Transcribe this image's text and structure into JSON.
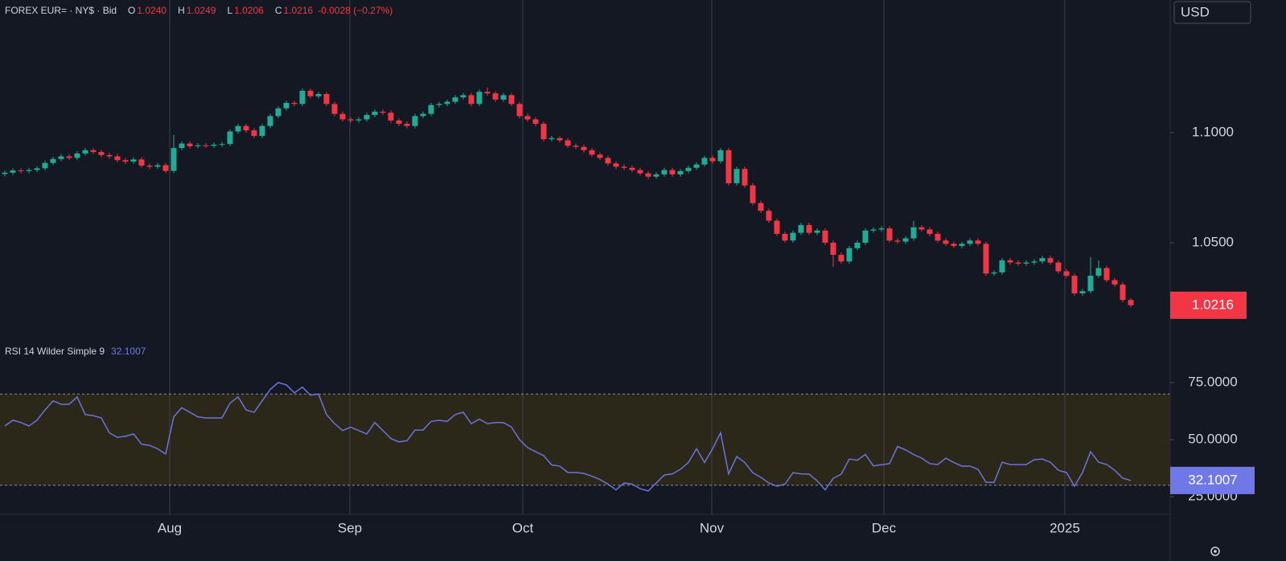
{
  "header": {
    "title": "FOREX EUR= · NY$ · Bid",
    "items": [
      {
        "key": "O",
        "value": "1.0240"
      },
      {
        "key": "H",
        "value": "1.0249"
      },
      {
        "key": "L",
        "value": "1.0206"
      },
      {
        "key": "C",
        "value": "1.0216"
      }
    ],
    "change": "-0.0028 (−0.27%)",
    "currency": "USD"
  },
  "chart_data": [
    {
      "type": "candlestick",
      "up_color": "#22ab94",
      "down_color": "#f23645",
      "ylim": [
        1.0051,
        1.1602
      ],
      "yticks": [
        {
          "value": 1.1,
          "label": "1.1000"
        },
        {
          "value": 1.05,
          "label": "1.0500"
        }
      ],
      "xticks": [
        {
          "value": 20.5,
          "label": "Aug"
        },
        {
          "value": 42.9,
          "label": "Sep"
        },
        {
          "value": 64.4,
          "label": "Oct"
        },
        {
          "value": 87.9,
          "label": "Nov"
        },
        {
          "value": 109.3,
          "label": "Dec"
        },
        {
          "value": 131.8,
          "label": "2025"
        }
      ],
      "last_label": "1.0216",
      "open": [
        1.0812,
        1.0818,
        1.0828,
        1.0825,
        1.083,
        1.0838,
        1.0862,
        1.088,
        1.0892,
        1.0885,
        1.0905,
        1.092,
        1.0912,
        1.0898,
        1.0892,
        1.0875,
        1.0868,
        1.0878,
        1.085,
        1.0845,
        1.0852,
        1.0826,
        1.093,
        1.095,
        1.0938,
        1.0942,
        1.094,
        1.0945,
        1.0948,
        1.1005,
        1.103,
        1.101,
        1.0985,
        1.103,
        1.1075,
        1.111,
        1.1135,
        1.113,
        1.119,
        1.1165,
        1.1175,
        1.113,
        1.1085,
        1.106,
        1.1055,
        1.106,
        1.108,
        1.1095,
        1.109,
        1.1055,
        1.104,
        1.103,
        1.1075,
        1.1085,
        1.1125,
        1.113,
        1.114,
        1.116,
        1.117,
        1.113,
        1.1185,
        1.1178,
        1.115,
        1.117,
        1.113,
        1.1075,
        1.106,
        1.104,
        1.097,
        1.0975,
        1.0965,
        1.094,
        1.0935,
        1.092,
        1.09,
        1.0885,
        1.086,
        1.0845,
        1.084,
        1.083,
        1.0815,
        1.08,
        1.081,
        1.083,
        1.081,
        1.0825,
        1.084,
        1.0855,
        1.0885,
        1.087,
        1.092,
        1.077,
        1.0835,
        1.076,
        1.068,
        1.0645,
        1.06,
        1.054,
        1.051,
        1.0545,
        1.058,
        1.0545,
        1.0555,
        1.05,
        1.0445,
        1.0415,
        1.0475,
        1.05,
        1.0555,
        1.056,
        1.0565,
        1.051,
        1.0505,
        1.052,
        1.057,
        1.056,
        1.054,
        1.051,
        1.0495,
        1.0485,
        1.0495,
        1.051,
        1.0495,
        1.036,
        1.0365,
        1.042,
        1.041,
        1.0405,
        1.041,
        1.0415,
        1.043,
        1.041,
        1.037,
        1.035,
        1.027,
        1.028,
        1.035,
        1.0385,
        1.033,
        1.031,
        1.024
      ],
      "high": [
        1.0828,
        1.0838,
        1.0838,
        1.084,
        1.0848,
        1.0872,
        1.089,
        1.0902,
        1.0902,
        1.0915,
        1.093,
        1.093,
        1.0922,
        1.0908,
        1.0902,
        1.0885,
        1.0888,
        1.0888,
        1.086,
        1.0862,
        1.0862,
        1.099,
        1.096,
        1.096,
        1.0952,
        1.0952,
        1.0955,
        1.0958,
        1.1015,
        1.104,
        1.104,
        1.102,
        1.104,
        1.1085,
        1.112,
        1.1145,
        1.1145,
        1.12,
        1.12,
        1.1185,
        1.1185,
        1.114,
        1.1095,
        1.107,
        1.107,
        1.109,
        1.1105,
        1.1105,
        1.11,
        1.1065,
        1.105,
        1.1085,
        1.1095,
        1.1135,
        1.114,
        1.115,
        1.117,
        1.118,
        1.118,
        1.1195,
        1.1205,
        1.1188,
        1.118,
        1.118,
        1.114,
        1.1085,
        1.107,
        1.105,
        1.0985,
        1.0985,
        1.0975,
        1.095,
        1.0945,
        1.093,
        1.091,
        1.0895,
        1.087,
        1.0855,
        1.085,
        1.084,
        1.0825,
        1.082,
        1.084,
        1.084,
        1.0835,
        1.085,
        1.0865,
        1.0895,
        1.0895,
        1.093,
        1.093,
        1.0845,
        1.0845,
        1.077,
        1.069,
        1.0655,
        1.061,
        1.055,
        1.0555,
        1.059,
        1.059,
        1.0565,
        1.0565,
        1.051,
        1.0455,
        1.0485,
        1.051,
        1.0565,
        1.057,
        1.0575,
        1.0575,
        1.052,
        1.053,
        1.06,
        1.058,
        1.057,
        1.055,
        1.052,
        1.0505,
        1.0505,
        1.052,
        1.052,
        1.0505,
        1.0375,
        1.043,
        1.043,
        1.042,
        1.042,
        1.0425,
        1.044,
        1.044,
        1.042,
        1.038,
        1.036,
        1.029,
        1.0435,
        1.042,
        1.0395,
        1.034,
        1.032,
        1.0249
      ],
      "low": [
        1.0802,
        1.0808,
        1.0815,
        1.0815,
        1.082,
        1.0828,
        1.0852,
        1.087,
        1.0875,
        1.0875,
        1.0895,
        1.0902,
        1.0888,
        1.0882,
        1.0865,
        1.0858,
        1.0858,
        1.084,
        1.0835,
        1.0835,
        1.0816,
        1.0816,
        1.092,
        1.0928,
        1.0928,
        1.093,
        1.093,
        1.0935,
        1.0938,
        1.0995,
        1.1,
        1.0975,
        1.0975,
        1.102,
        1.1065,
        1.11,
        1.112,
        1.112,
        1.1155,
        1.1155,
        1.112,
        1.1075,
        1.105,
        1.1045,
        1.1045,
        1.105,
        1.107,
        1.108,
        1.1045,
        1.103,
        1.102,
        1.102,
        1.1065,
        1.1075,
        1.1115,
        1.112,
        1.113,
        1.115,
        1.112,
        1.112,
        1.1168,
        1.114,
        1.114,
        1.112,
        1.1065,
        1.105,
        1.103,
        1.096,
        1.096,
        1.0955,
        1.093,
        1.0925,
        1.091,
        1.089,
        1.0875,
        1.085,
        1.0835,
        1.083,
        1.082,
        1.0805,
        1.079,
        1.079,
        1.08,
        1.08,
        1.08,
        1.0815,
        1.083,
        1.0845,
        1.086,
        1.086,
        1.076,
        1.076,
        1.075,
        1.067,
        1.0635,
        1.059,
        1.053,
        1.05,
        1.05,
        1.0535,
        1.0535,
        1.0535,
        1.049,
        1.039,
        1.0405,
        1.0405,
        1.0465,
        1.049,
        1.0545,
        1.055,
        1.05,
        1.0495,
        1.0495,
        1.051,
        1.055,
        1.053,
        1.05,
        1.0485,
        1.0475,
        1.0475,
        1.0485,
        1.0485,
        1.035,
        1.035,
        1.0355,
        1.04,
        1.0395,
        1.0395,
        1.04,
        1.0405,
        1.04,
        1.036,
        1.034,
        1.026,
        1.026,
        1.027,
        1.034,
        1.032,
        1.03,
        1.023,
        1.0206
      ],
      "close": [
        1.0818,
        1.0828,
        1.0825,
        1.083,
        1.0838,
        1.0862,
        1.088,
        1.0892,
        1.0885,
        1.0905,
        1.092,
        1.0912,
        1.0898,
        1.0892,
        1.0875,
        1.0868,
        1.0878,
        1.085,
        1.0845,
        1.0852,
        1.0826,
        1.093,
        1.095,
        1.0938,
        1.0942,
        1.094,
        1.0945,
        1.0948,
        1.1005,
        1.103,
        1.101,
        1.0985,
        1.103,
        1.1075,
        1.111,
        1.1135,
        1.113,
        1.119,
        1.1165,
        1.1175,
        1.113,
        1.1085,
        1.106,
        1.1055,
        1.106,
        1.108,
        1.1095,
        1.109,
        1.1055,
        1.104,
        1.103,
        1.1075,
        1.1085,
        1.1125,
        1.113,
        1.114,
        1.116,
        1.117,
        1.113,
        1.1185,
        1.1178,
        1.115,
        1.117,
        1.113,
        1.1075,
        1.106,
        1.104,
        1.097,
        1.0975,
        1.0965,
        1.094,
        1.0935,
        1.092,
        1.09,
        1.0885,
        1.086,
        1.0845,
        1.084,
        1.083,
        1.0815,
        1.08,
        1.081,
        1.083,
        1.081,
        1.0825,
        1.084,
        1.0855,
        1.0885,
        1.087,
        1.092,
        1.077,
        1.0835,
        1.076,
        1.068,
        1.0645,
        1.06,
        1.054,
        1.051,
        1.0545,
        1.058,
        1.0545,
        1.0555,
        1.05,
        1.0445,
        1.0415,
        1.0475,
        1.05,
        1.0555,
        1.056,
        1.0565,
        1.051,
        1.0505,
        1.052,
        1.057,
        1.056,
        1.054,
        1.051,
        1.0495,
        1.0485,
        1.0495,
        1.051,
        1.0495,
        1.036,
        1.0365,
        1.042,
        1.041,
        1.0405,
        1.041,
        1.0415,
        1.043,
        1.041,
        1.037,
        1.035,
        1.027,
        1.028,
        1.035,
        1.0385,
        1.033,
        1.031,
        1.024,
        1.0216
      ]
    },
    {
      "type": "line",
      "title": "RSI 14 Wilder Simple 9",
      "value_label": "32.1007",
      "color": "#6b73de",
      "label_color": "#7078e8",
      "band": [
        30,
        70
      ],
      "band_color": "#2b2719",
      "ylim": [
        17.25,
        92.96
      ],
      "yticks": [
        {
          "value": 75,
          "label": "75.0000"
        },
        {
          "value": 50,
          "label": "50.0000"
        },
        {
          "value": 25,
          "label": "25.0000"
        }
      ],
      "values": [
        56,
        58.5,
        57.5,
        56,
        58.5,
        63,
        67,
        65.5,
        65.5,
        68.7,
        61,
        60.5,
        59.5,
        53,
        51,
        51.5,
        52.5,
        48,
        47.5,
        46,
        43.7,
        60,
        64,
        62,
        60,
        59.5,
        59.5,
        59.5,
        66,
        68.7,
        63,
        62,
        67,
        72,
        75,
        74,
        70.5,
        73,
        69.5,
        70,
        61,
        57,
        54,
        55.5,
        54,
        52.5,
        57.5,
        54,
        50.5,
        49,
        49.5,
        54.2,
        54.2,
        58,
        58.5,
        58,
        61,
        62,
        57,
        59,
        57,
        57.5,
        57.5,
        55.5,
        50,
        46.5,
        44.7,
        43,
        38.9,
        38.4,
        35.6,
        35.6,
        35.2,
        34,
        32.5,
        30.5,
        28,
        31,
        30.5,
        28.5,
        27.5,
        31,
        34.5,
        35,
        37,
        40,
        46,
        40,
        46,
        53,
        35,
        42.6,
        40,
        35.5,
        33.5,
        31,
        29.6,
        30.5,
        35.5,
        35,
        34.9,
        32,
        28,
        33,
        34.9,
        41.5,
        41,
        43.5,
        38.5,
        39,
        39.5,
        47,
        45.5,
        43.5,
        41.9,
        39.5,
        39.1,
        41.9,
        40,
        38.4,
        38.4,
        37,
        31.3,
        31.3,
        40.1,
        39.1,
        39.1,
        39.1,
        41.2,
        41.5,
        40.1,
        36.6,
        35.6,
        29.6,
        35.6,
        44.7,
        40.1,
        39.1,
        36.6,
        33.1,
        32.1007
      ]
    }
  ]
}
